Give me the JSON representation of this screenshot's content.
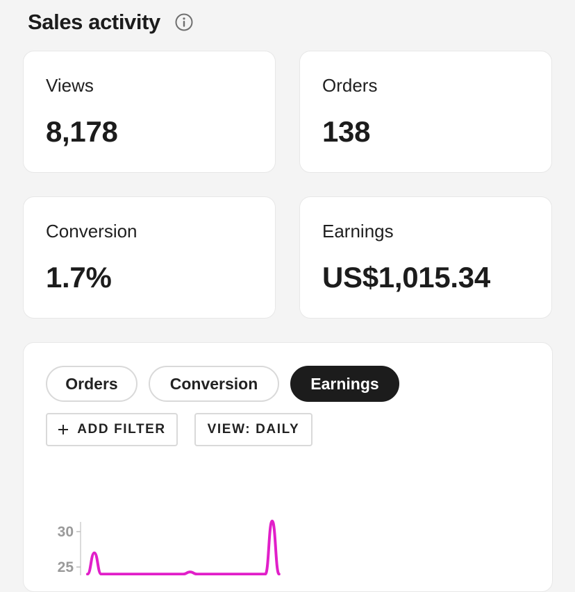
{
  "header": {
    "title": "Sales activity",
    "info_icon": "info-icon"
  },
  "stats": [
    {
      "key": "views",
      "label": "Views",
      "value": "8,178"
    },
    {
      "key": "orders",
      "label": "Orders",
      "value": "138"
    },
    {
      "key": "conversion",
      "label": "Conversion",
      "value": "1.7%"
    },
    {
      "key": "earnings",
      "label": "Earnings",
      "value": "US$1,015.34"
    }
  ],
  "chart_panel": {
    "tabs": [
      {
        "label": "Orders",
        "active": false
      },
      {
        "label": "Conversion",
        "active": false
      },
      {
        "label": "Earnings",
        "active": true
      }
    ],
    "add_filter_label": "ADD FILTER",
    "view_label": "VIEW: DAILY",
    "accent_color": "#e11fc9"
  },
  "chart_data": {
    "type": "line",
    "title": "",
    "xlabel": "",
    "ylabel": "",
    "y_ticks": [
      "30",
      "25"
    ],
    "series": [
      {
        "color": "#e11fc9",
        "points_visible": [
          {
            "x": 0,
            "y": 24
          },
          {
            "x": 1,
            "y": 27
          },
          {
            "x": 2,
            "y": 24
          },
          {
            "x": 14,
            "y": 24
          },
          {
            "x": 15,
            "y": 24.3
          },
          {
            "x": 16,
            "y": 24
          },
          {
            "x": 26,
            "y": 24
          },
          {
            "x": 27,
            "y": 31.5
          },
          {
            "x": 28,
            "y": 24
          }
        ]
      }
    ]
  }
}
